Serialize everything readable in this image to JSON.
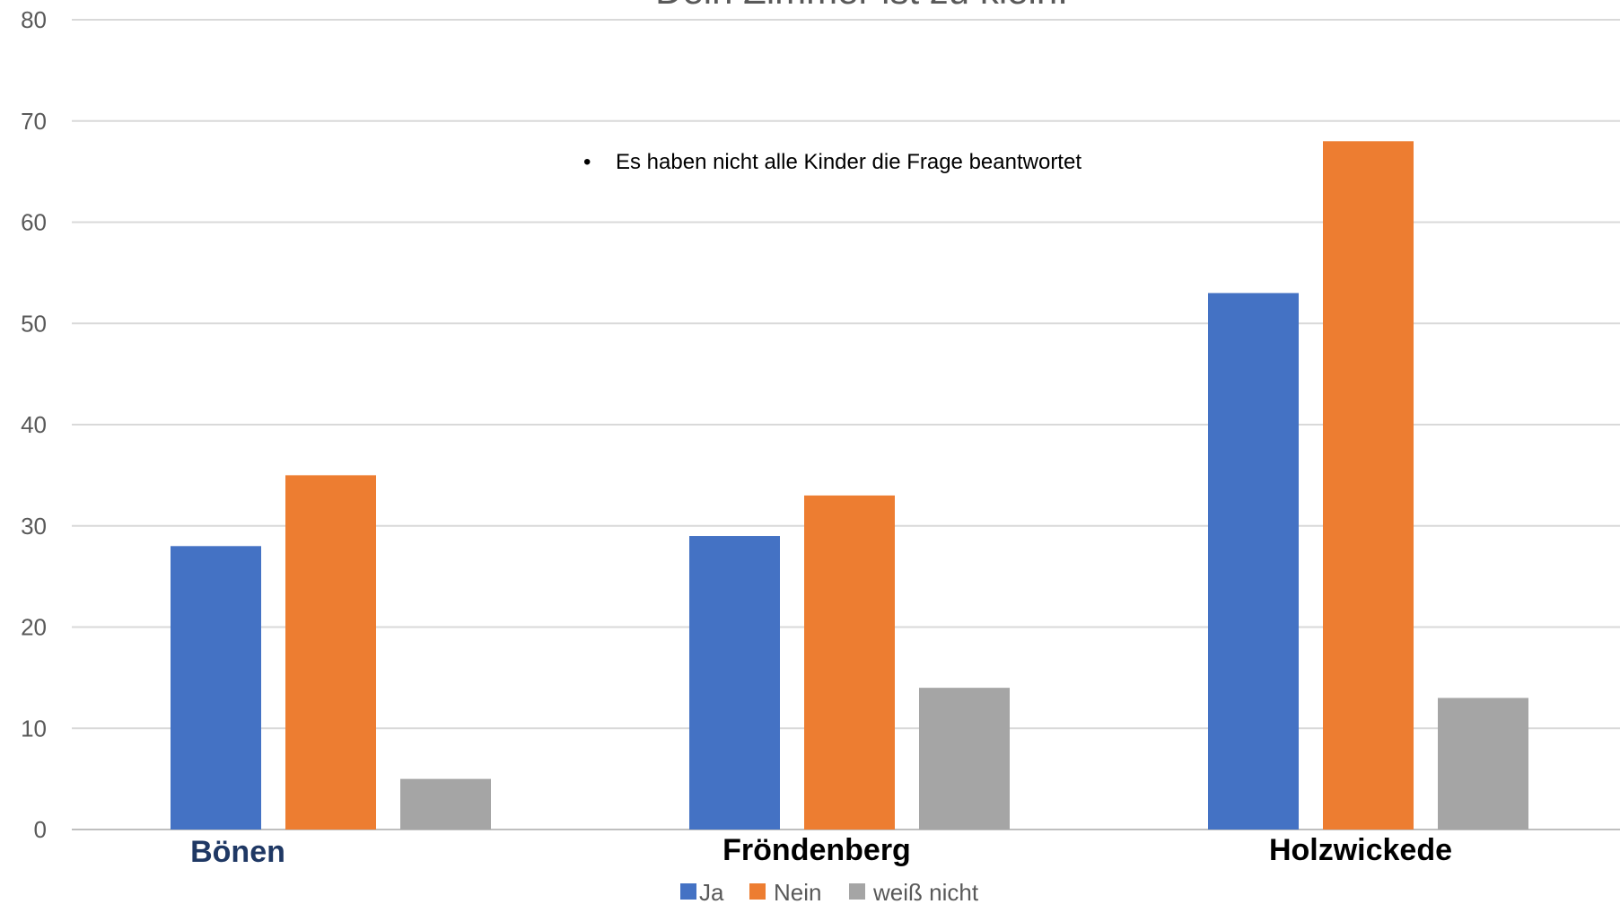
{
  "chart_data": {
    "type": "bar",
    "title": "Dein Zimmer ist zu klein.",
    "note": "Es haben nicht alle Kinder die Frage beantwortet",
    "categories": [
      "Bönen",
      "Fröndenberg",
      "Holzwickede"
    ],
    "category_colors": [
      "#1f3864",
      "#000000",
      "#000000"
    ],
    "series": [
      {
        "name": "Ja",
        "color": "#4472c4",
        "values": [
          28,
          29,
          53
        ]
      },
      {
        "name": "Nein",
        "color": "#ed7d31",
        "values": [
          35,
          33,
          68
        ]
      },
      {
        "name": "weiß nicht",
        "color": "#a5a5a5",
        "values": [
          5,
          14,
          13
        ]
      }
    ],
    "ylim": [
      0,
      80
    ],
    "yticks": [
      0,
      10,
      20,
      30,
      40,
      50,
      60,
      70,
      80
    ],
    "grid": true,
    "legend_position": "bottom"
  }
}
